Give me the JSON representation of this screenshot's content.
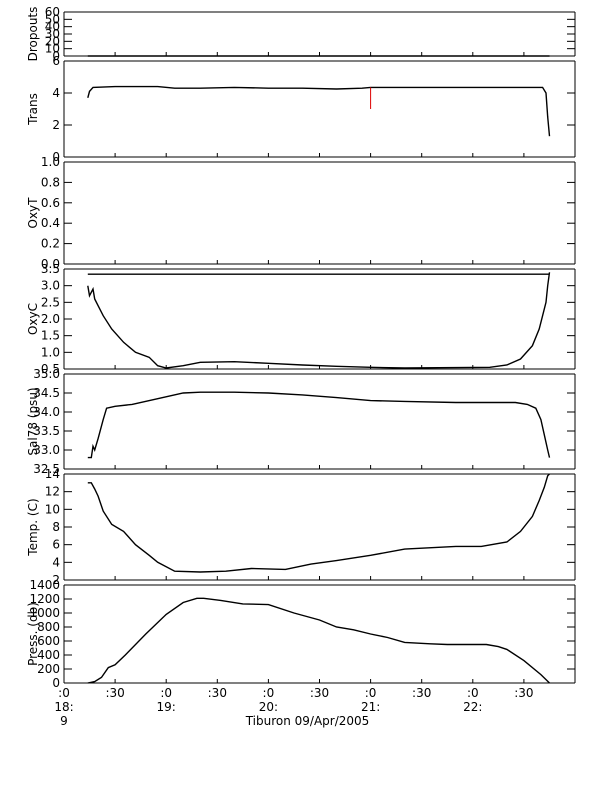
{
  "chart_data": {
    "type": "line",
    "xlabel": "Tiburon 09/Apr/2005",
    "x_ticks": [
      {
        "t": 0,
        "lines": [
          ":0",
          "18:",
          "9"
        ]
      },
      {
        "t": 30,
        "lines": [
          ":30"
        ]
      },
      {
        "t": 60,
        "lines": [
          ":0",
          "19:"
        ]
      },
      {
        "t": 90,
        "lines": [
          ":30"
        ]
      },
      {
        "t": 120,
        "lines": [
          ":0",
          "20:"
        ]
      },
      {
        "t": 150,
        "lines": [
          ":30"
        ]
      },
      {
        "t": 180,
        "lines": [
          ":0",
          "21:"
        ]
      },
      {
        "t": 210,
        "lines": [
          ":30"
        ]
      },
      {
        "t": 240,
        "lines": [
          ":0",
          "22:"
        ]
      },
      {
        "t": 270,
        "lines": [
          ":30"
        ]
      }
    ],
    "xlim": [
      0,
      300
    ],
    "panels": [
      {
        "ylabel": "Dropouts",
        "ylim": [
          0,
          60
        ],
        "yticks": [
          0,
          10,
          20,
          30,
          40,
          50,
          60
        ],
        "series": [
          {
            "x": [
              14,
              285
            ],
            "y": [
              0,
              0
            ]
          }
        ]
      },
      {
        "ylabel": "Trans",
        "ylim": [
          0,
          6
        ],
        "yticks": [
          0,
          2,
          4,
          6
        ],
        "series": [
          {
            "x": [
              14,
              15,
              17,
              30,
              55,
              65,
              80,
              100,
              120,
              140,
              160,
              175,
              180,
              195,
              210,
              230,
              255,
              270,
              281,
              283,
              284,
              285
            ],
            "y": [
              3.7,
              4.1,
              4.35,
              4.4,
              4.4,
              4.3,
              4.3,
              4.35,
              4.3,
              4.3,
              4.25,
              4.3,
              4.35,
              4.35,
              4.35,
              4.35,
              4.35,
              4.35,
              4.35,
              4.0,
              2.5,
              1.3
            ]
          }
        ],
        "spikes": [
          {
            "x": 180,
            "y": 3.0
          }
        ]
      },
      {
        "ylabel": "OxyT",
        "ylim": [
          0,
          1
        ],
        "yticks": [
          0.0,
          0.2,
          0.4,
          0.6,
          0.8,
          1.0
        ],
        "series": [
          {
            "x": [
              14,
              285
            ],
            "y": [
              -0.1,
              -0.1
            ]
          }
        ]
      },
      {
        "ylabel": "OxyC",
        "ylim": [
          0.5,
          3.5
        ],
        "yticks": [
          0.5,
          1.0,
          1.5,
          2.0,
          2.5,
          3.0,
          3.5
        ],
        "series": [
          {
            "x": [
              14,
              15,
              17,
              18,
              20,
              23,
              28,
              35,
              42,
              50,
              55,
              60,
              70,
              80,
              100,
              120,
              140,
              160,
              180,
              200,
              220,
              250,
              260,
              268,
              275,
              279,
              281,
              283,
              284,
              285
            ],
            "y": [
              3.0,
              2.7,
              2.9,
              2.6,
              2.4,
              2.1,
              1.7,
              1.3,
              1.0,
              0.85,
              0.6,
              0.53,
              0.6,
              0.7,
              0.72,
              0.67,
              0.62,
              0.58,
              0.55,
              0.53,
              0.54,
              0.55,
              0.62,
              0.8,
              1.2,
              1.7,
              2.1,
              2.5,
              3.0,
              3.4
            ]
          }
        ]
      },
      {
        "ylabel": "Sal78 (psu)",
        "ylim": [
          32.5,
          35.0
        ],
        "yticks": [
          32.5,
          33.0,
          33.5,
          34.0,
          34.5,
          35.0
        ],
        "series": [
          {
            "x": [
              14,
              16,
              17,
              18,
              20,
              23,
              25,
              30,
              40,
              55,
              70,
              80,
              100,
              120,
              140,
              160,
              180,
              200,
              230,
              255,
              265,
              272,
              277,
              280,
              282,
              284,
              285
            ],
            "y": [
              32.8,
              32.8,
              33.1,
              33.0,
              33.3,
              33.8,
              34.1,
              34.15,
              34.2,
              34.35,
              34.5,
              34.52,
              34.52,
              34.5,
              34.45,
              34.38,
              34.3,
              34.28,
              34.25,
              34.25,
              34.25,
              34.2,
              34.1,
              33.8,
              33.4,
              33.0,
              32.8
            ]
          }
        ]
      },
      {
        "ylabel": "Temp. (C)",
        "ylim": [
          2,
          14
        ],
        "yticks": [
          2,
          4,
          6,
          8,
          10,
          12,
          14
        ],
        "series": [
          {
            "x": [
              14,
              16,
              18,
              20,
              23,
              28,
              35,
              42,
              50,
              55,
              65,
              80,
              95,
              110,
              130,
              145,
              160,
              180,
              200,
              230,
              245,
              260,
              268,
              275,
              279,
              282,
              284,
              285
            ],
            "y": [
              13.0,
              13.0,
              12.3,
              11.5,
              9.8,
              8.3,
              7.5,
              6.0,
              4.8,
              4.0,
              3.0,
              2.9,
              3.0,
              3.3,
              3.2,
              3.8,
              4.2,
              4.8,
              5.5,
              5.8,
              5.8,
              6.3,
              7.5,
              9.2,
              11.0,
              12.5,
              13.8,
              14.0
            ]
          }
        ]
      },
      {
        "ylabel": "Press. (db)",
        "ylim": [
          0,
          1400
        ],
        "yticks": [
          0,
          200,
          400,
          600,
          800,
          1000,
          1200,
          1400
        ],
        "series": [
          {
            "x": [
              14,
              18,
              22,
              26,
              30,
              36,
              48,
              60,
              70,
              78,
              82,
              92,
              105,
              120,
              135,
              150,
              160,
              170,
              180,
              190,
              200,
              215,
              225,
              235,
              248,
              255,
              260,
              270,
              280,
              285
            ],
            "y": [
              0,
              20,
              80,
              220,
              260,
              400,
              700,
              980,
              1150,
              1210,
              1210,
              1180,
              1130,
              1120,
              1000,
              900,
              800,
              760,
              700,
              650,
              580,
              560,
              550,
              550,
              550,
              520,
              480,
              320,
              120,
              0
            ]
          }
        ]
      }
    ]
  }
}
